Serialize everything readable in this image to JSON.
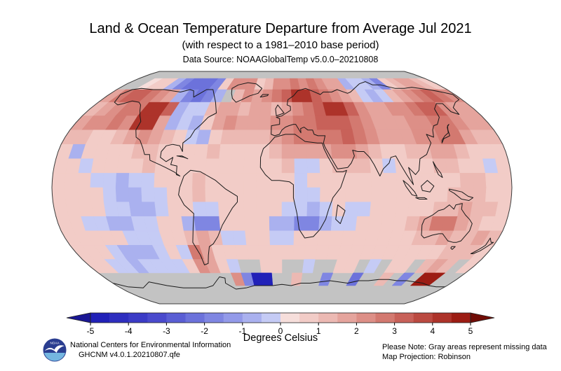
{
  "header": {
    "title": "Land & Ocean Temperature Departure from Average Jul 2021",
    "subtitle": "(with respect to a 1981–2010 base period)",
    "datasource": "Data Source: NOAAGlobalTemp v5.0.0–20210808"
  },
  "legend": {
    "label": "Degrees Celsius",
    "tick_values": [
      -5,
      -4,
      -3,
      -2,
      -1,
      0,
      1,
      2,
      3,
      4,
      5
    ],
    "tick_labels": [
      "-5",
      "-4",
      "-3",
      "-2",
      "-1",
      "0",
      "1",
      "2",
      "3",
      "4",
      "5"
    ],
    "min": -5,
    "max": 5,
    "segment_colors": [
      "#2121b8",
      "#2e2ebf",
      "#3b3bc6",
      "#4a4acd",
      "#5a5ed4",
      "#6c72db",
      "#7f86e2",
      "#939ae9",
      "#aab1ef",
      "#c5cbf5",
      "#f6dedb",
      "#f2ccc7",
      "#ecb9b3",
      "#e5a49d",
      "#dd8f87",
      "#d37970",
      "#c86159",
      "#bb4a41",
      "#ad332a",
      "#9c1c13"
    ],
    "left_arrow_color": "#1a1794",
    "right_arrow_color": "#700c06"
  },
  "footer": {
    "logo_text": "NOAA",
    "org_line1": "National Centers for Environmental Information",
    "org_line2": "GHCNM v4.0.1.20210807.qfe",
    "note_line1": "Please Note: Gray areas represent missing data",
    "note_line2": "Map Projection: Robinson"
  },
  "chart_data": {
    "type": "heatmap",
    "title": "Land & Ocean Temperature Departure from Average Jul 2021",
    "units": "Degrees Celsius",
    "projection": "Robinson",
    "anomaly_range": [
      -5,
      5
    ],
    "missing_color": "#c3c3c3",
    "lon_start": -180,
    "lon_step": 10,
    "lat_start": 90,
    "lat_step": -10,
    "value_map": {
      "x": null,
      "a": -4.75,
      "b": -3.75,
      "c": -2.25,
      "d": -1.75,
      "e": -1.25,
      "f": -0.75,
      "g": -0.25,
      "h": 0.25,
      "i": 0.4,
      "j": 0.75,
      "k": 1.25,
      "l": 1.75,
      "m": 2.25,
      "n": 2.75,
      "o": 3.25,
      "p": 3.75,
      "q": 4.25,
      "r": 4.6,
      "s": 4.9
    },
    "grid": [
      "xxxxxxxxxxxxxxxxxxxxxxxxxxxxxxxxxxxx",
      "xxhjjfdcccdjmmmjkmmnmnmllfggfdjkllkj",
      "lnoonmlfdcdfxkmlmnoqqonmlkgfgklmnonm",
      "klmnnqqofggkllkllklmnoqqomllmmnoomll",
      "lmmnmqqlfgfjlmlllmmnnooonmlllmmnnmll",
      "kkjjklmlkjgfjkkkklmnnnnonmlllmmnnlkk",
      "jfjjjjkkjjjjkjjjjkllllmmlkjjkkllkjjj",
      "jjgjjjjkjjjjjjjjjjkggjkkkjgjjjkkjjgj",
      "jjjggfggjjjkjjjjjjjgjjjjjjjjjjjjkkjj",
      "jjjjgffggjjkjjjjjjjggjjjjjjjjjjkkkjj",
      "jjjjggffgjjggjjjjjggfgjggjjjjjkklkkj",
      "jjggffggjjfddjjjjffddfggjjjjklnnlkjj",
      "jjjjjgggjjklkggjjggjjjjjjjjjjkklkklk",
      "jjjgfffgjgnljjjjjjjjjjjjjjjjjjjjkkkj",
      "jjggfggggjmljgxxjjxxgxxjjxgxjjxklkxj",
      "xxxxxxxxxxxxxmdaaxxkxxdxxcxxkxdxssxx",
      "xxxxxxxxxxxxxxxxxxxxxxxxxxxxxxxxxxxx",
      "xxxxxxxxxxxxxxxxxxxxxxxxxxxxxxxxxxxx"
    ]
  }
}
